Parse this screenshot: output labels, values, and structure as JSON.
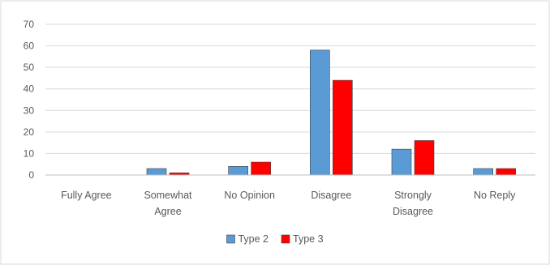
{
  "chart_data": {
    "type": "bar",
    "title": "",
    "xlabel": "",
    "ylabel": "",
    "ylim": [
      0,
      70
    ],
    "yticks": [
      0,
      10,
      20,
      30,
      40,
      50,
      60,
      70
    ],
    "grid": true,
    "legend_position": "bottom",
    "categories": [
      [
        "Fully Agree"
      ],
      [
        "Somewhat",
        "Agree"
      ],
      [
        "No Opinion"
      ],
      [
        "Disagree"
      ],
      [
        "Strongly",
        "Disagree"
      ],
      [
        "No Reply"
      ]
    ],
    "series": [
      {
        "name": "Type 2",
        "color": "#5b9bd5",
        "values": [
          0,
          3,
          4,
          58,
          12,
          3
        ]
      },
      {
        "name": "Type 3",
        "color": "#ff0000",
        "values": [
          0,
          1,
          6,
          44,
          16,
          3
        ]
      }
    ]
  }
}
